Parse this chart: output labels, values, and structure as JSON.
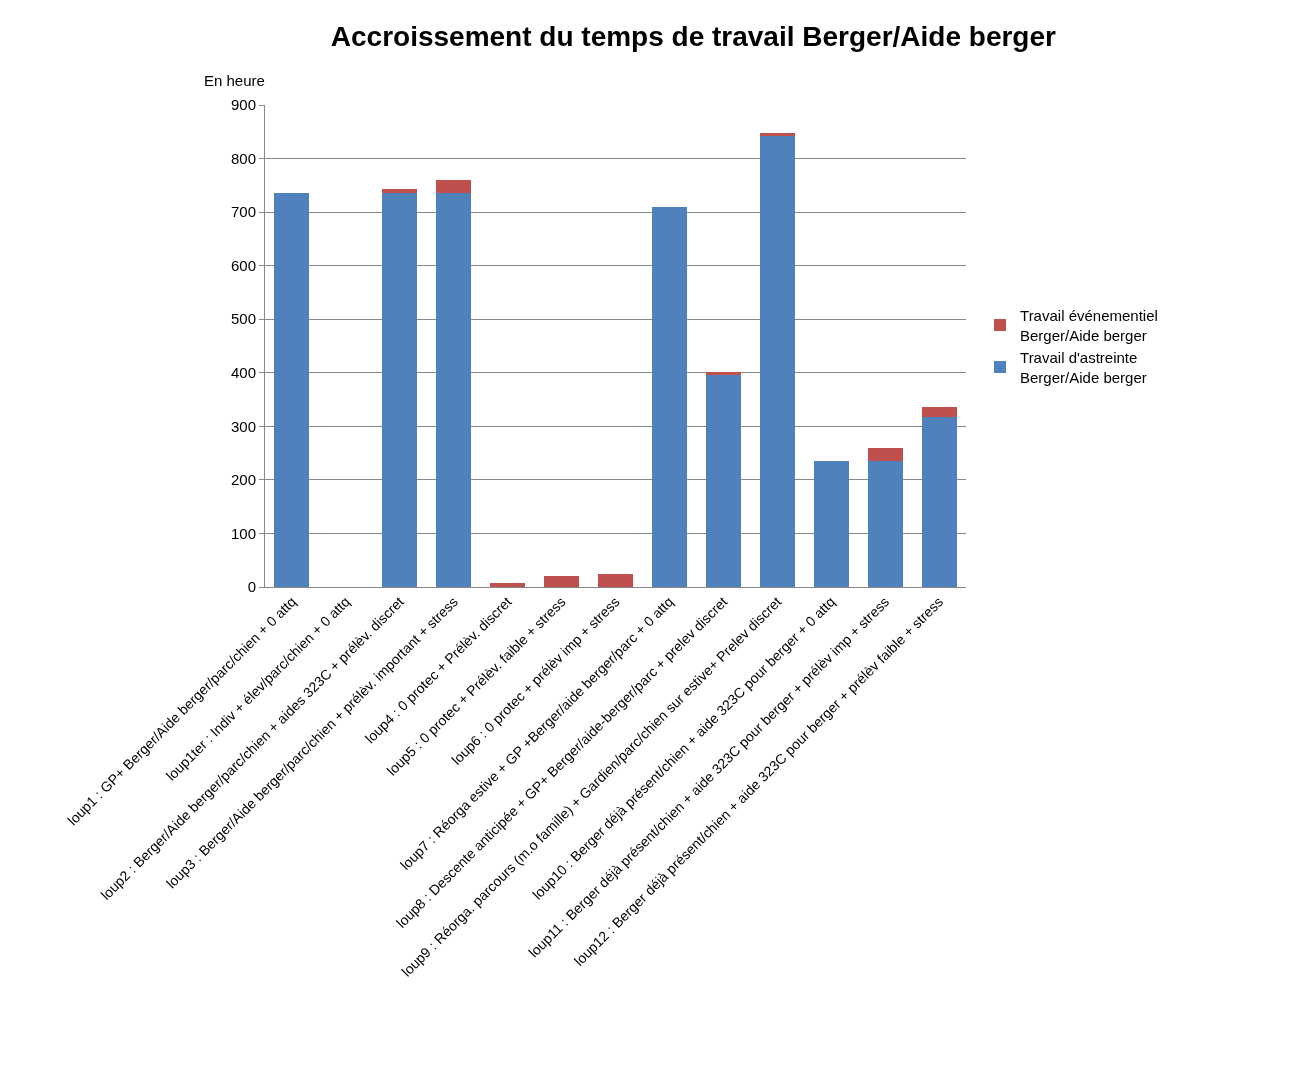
{
  "chart_data": {
    "type": "bar",
    "title": "Accroissement du temps de travail Berger/Aide berger",
    "ylabel": "En heure",
    "stacked": true,
    "grid": "y",
    "legend": "right",
    "categories": [
      "loup1 : GP+ Berger/Aide berger/parc/chien + 0 attq",
      "loup1ter : Indiv + élev/parc/chien + 0 attq",
      "loup2 : Berger/Aide berger/parc/chien + aides 323C + prélèv. discret",
      "loup3 : Berger/Aide berger/parc/chien + prélèv. important + stress",
      "loup4 : 0 protec + Prélèv. discret",
      "loup5 : 0 protec + Prélèv. faible + stress",
      "loup6 : 0 protec + prélèv imp + stress",
      "loup7 : Réorga estive + GP +Berger/aide berger/parc + 0 attq",
      "loup8 : Descente anticipée + GP+ Berger/aide-berger/parc + prelev discret",
      "loup9 : Réorga. parcours (m.o famille) + Gardien/parc/chien sur estive+ Prelev discret",
      "loup10 : Berger déjà présent/chien + aide 323C pour berger + 0 attq",
      "loup11 : Berger déjà présent/chien + aide 323C pour berger + prélèv imp + stress",
      "loup12 : Berger déjà présent/chien + aide 323C pour berger + prélèv faible + stress"
    ],
    "series": [
      {
        "name": "Travail d'astreinte Berger/Aide berger",
        "color": "#4f81bd",
        "values": [
          735,
          0,
          735,
          735,
          0,
          0,
          0,
          710,
          395,
          842,
          236,
          236,
          318
        ]
      },
      {
        "name": "Travail événementiel Berger/Aide berger",
        "color": "#c0504d",
        "values": [
          0,
          0,
          8,
          25,
          7,
          20,
          24,
          0,
          7,
          6,
          0,
          24,
          19
        ]
      }
    ],
    "ylim": [
      0,
      900
    ],
    "yticks": [
      0,
      100,
      200,
      300,
      400,
      500,
      600,
      700,
      800,
      900
    ]
  }
}
